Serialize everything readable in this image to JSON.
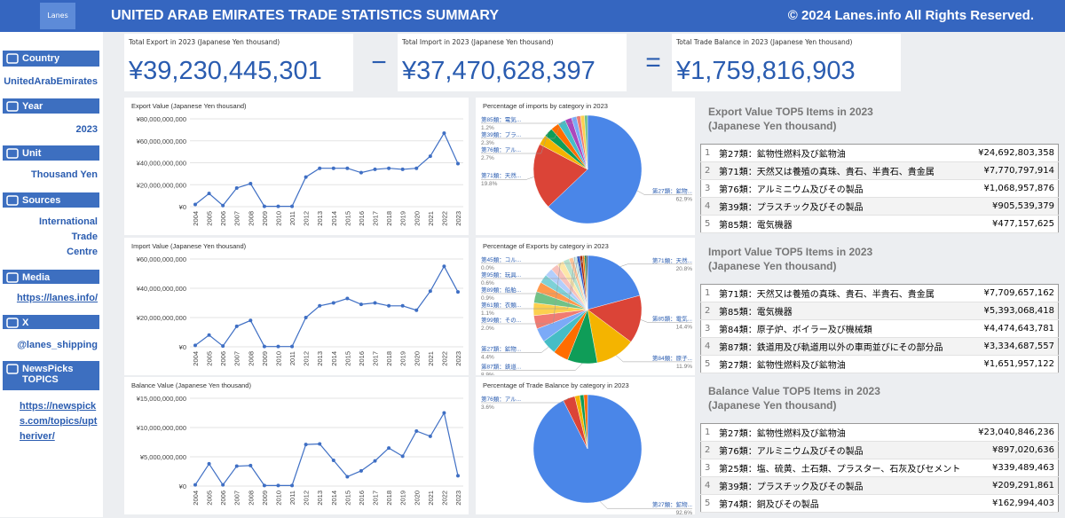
{
  "header": {
    "logo": "Lanes",
    "title": "UNITED ARAB EMIRATES TRADE STATISTICS SUMMARY",
    "copyright": "© 2024 Lanes.info All Rights Reserved."
  },
  "sidebar": [
    {
      "label": "Country",
      "value": "UnitedArabEmirates"
    },
    {
      "label": "Year",
      "value": "2023"
    },
    {
      "label": "Unit",
      "value": "Thousand Yen"
    },
    {
      "label": "Sources",
      "value": "International Trade Centre"
    },
    {
      "label": "Media",
      "value": "https://lanes.info/"
    },
    {
      "label": "X",
      "value": "@lanes_shipping"
    },
    {
      "label": "NewsPicks TOPICS",
      "value": "https://newspicks.com/topics/uptheriver/"
    }
  ],
  "kpis": [
    {
      "label": "Total Export in 2023 (Japanese Yen thousand)",
      "value": "¥39,230,445,301"
    },
    {
      "label": "Total Import in 2023 (Japanese Yen thousand)",
      "value": "¥37,470,628,397"
    },
    {
      "label": "Total Trade Balance in 2023 (Japanese Yen thousand)",
      "value": "¥1,759,816,903"
    }
  ],
  "operators": [
    "−",
    "="
  ],
  "chart_data": [
    {
      "type": "line",
      "title": "Export Value (Japanese Yen thousand)",
      "categories": [
        "2004",
        "2005",
        "2006",
        "2007",
        "2008",
        "2009",
        "2010",
        "2011",
        "2012",
        "2013",
        "2014",
        "2015",
        "2016",
        "2017",
        "2018",
        "2019",
        "2020",
        "2021",
        "2022",
        "2023"
      ],
      "values": [
        2000000000,
        12000000000,
        1000000000,
        17000000000,
        21000000000,
        300000000,
        300000000,
        300000000,
        27000000000,
        35000000000,
        35000000000,
        35000000000,
        31000000000,
        34000000000,
        35000000000,
        34000000000,
        35000000000,
        46000000000,
        67000000000,
        39230445301
      ],
      "color": "#3f6fc4",
      "ylim": [
        0,
        80000000000
      ],
      "yticks": [
        {
          "value": 0,
          "label": "¥0"
        },
        {
          "value": 20000000000,
          "label": "¥20,000,000,000"
        },
        {
          "value": 40000000000,
          "label": "¥40,000,000,000"
        },
        {
          "value": 60000000000,
          "label": "¥60,000,000,000"
        },
        {
          "value": 80000000000,
          "label": "¥80,000,000,000"
        }
      ],
      "grid": true
    },
    {
      "type": "line",
      "title": "Import Value (Japanese Yen thousand)",
      "categories": [
        "2004",
        "2005",
        "2006",
        "2007",
        "2008",
        "2009",
        "2010",
        "2011",
        "2012",
        "2013",
        "2014",
        "2015",
        "2016",
        "2017",
        "2018",
        "2019",
        "2020",
        "2021",
        "2022",
        "2023"
      ],
      "values": [
        1000000000,
        8000000000,
        500000000,
        14000000000,
        18000000000,
        200000000,
        200000000,
        200000000,
        20000000000,
        28000000000,
        30000000000,
        33000000000,
        29000000000,
        30000000000,
        28000000000,
        28000000000,
        25000000000,
        38000000000,
        55000000000,
        37470628397
      ],
      "color": "#3f6fc4",
      "ylim": [
        0,
        60000000000
      ],
      "yticks": [
        {
          "value": 0,
          "label": "¥0"
        },
        {
          "value": 20000000000,
          "label": "¥20,000,000,000"
        },
        {
          "value": 40000000000,
          "label": "¥40,000,000,000"
        },
        {
          "value": 60000000000,
          "label": "¥60,000,000,000"
        }
      ],
      "grid": true
    },
    {
      "type": "line",
      "title": "Balance Value (Japanese Yen thousand)",
      "categories": [
        "2004",
        "2005",
        "2006",
        "2007",
        "2008",
        "2009",
        "2010",
        "2011",
        "2012",
        "2013",
        "2014",
        "2015",
        "2016",
        "2017",
        "2018",
        "2019",
        "2020",
        "2021",
        "2022",
        "2023"
      ],
      "values": [
        200000000,
        3800000000,
        200000000,
        3400000000,
        3500000000,
        100000000,
        100000000,
        100000000,
        7100000000,
        7200000000,
        4400000000,
        1600000000,
        2600000000,
        4300000000,
        6500000000,
        5100000000,
        9400000000,
        8500000000,
        12500000000,
        1759816903
      ],
      "color": "#3f6fc4",
      "ylim": [
        0,
        15000000000
      ],
      "yticks": [
        {
          "value": 0,
          "label": "¥0"
        },
        {
          "value": 5000000000,
          "label": "¥5,000,000,000"
        },
        {
          "value": 10000000000,
          "label": "¥10,000,000,000"
        },
        {
          "value": 15000000000,
          "label": "¥15,000,000,000"
        }
      ],
      "grid": true
    },
    {
      "type": "pie",
      "title": "Percentage of imports by category in 2023",
      "categories": [
        "第27類：鉱物...",
        "第71類：天然...",
        null,
        "第76類：アル...",
        null,
        "第39類：プラ...",
        null,
        null,
        "第85類：電気...",
        null,
        null
      ],
      "values": [
        62.9,
        19.8,
        3.0,
        2.7,
        2.5,
        2.3,
        2.0,
        1.5,
        1.2,
        1.2,
        0.9
      ],
      "value_labels": [
        "62.9%",
        "19.8%",
        null,
        "2.7%",
        null,
        "2.3%",
        null,
        null,
        "1.2%",
        null,
        null
      ],
      "colors": [
        "#4a86e8",
        "#db4437",
        "#f4b400",
        "#0f9d58",
        "#ff6d00",
        "#46bdc6",
        "#ab47bc",
        "#7baaf7",
        "#f07b72",
        "#fcd04f",
        "#71c287"
      ]
    },
    {
      "type": "pie",
      "title": "Percentage of Exports by category in 2023",
      "categories": [
        "第71類：天然...",
        "第85類：電気...",
        "第84類：原子...",
        "第87類：鉄道...",
        null,
        "第27類：鉱物...",
        null,
        null,
        null,
        null,
        null,
        null,
        null,
        null,
        "第99類：その...",
        null,
        null,
        "第61類：衣類...",
        "第89類：船舶...",
        null,
        "第95類：玩具...",
        null,
        null,
        "第45類：コル..."
      ],
      "values": [
        20.8,
        14.4,
        11.9,
        8.9,
        4.6,
        4.4,
        4.2,
        4.0,
        3.8,
        3.4,
        3.0,
        2.6,
        2.4,
        2.2,
        2.0,
        1.8,
        1.3,
        1.1,
        0.9,
        0.8,
        0.6,
        0.5,
        0.4,
        0.0
      ],
      "value_labels": [
        "20.8%",
        "14.4%",
        "11.9%",
        "8.9%",
        null,
        "4.4%",
        null,
        null,
        null,
        null,
        null,
        null,
        null,
        null,
        "2.0%",
        null,
        null,
        "1.1%",
        "0.9%",
        null,
        "0.6%",
        null,
        null,
        "0.0%"
      ],
      "colors": [
        "#4a86e8",
        "#db4437",
        "#f4b400",
        "#0f9d58",
        "#ff6d00",
        "#46bdc6",
        "#7baaf7",
        "#f07b72",
        "#fcd04f",
        "#71c287",
        "#ff994d",
        "#7ed1d7",
        "#b3cefb",
        "#f7c1bb",
        "#fde7a9",
        "#b7e1cd",
        "#ffc599",
        "#c5e8eb",
        "#2a56c6",
        "#a52714",
        "#ee8100",
        "#0b8043",
        "#000000",
        "#9e9e9e"
      ]
    },
    {
      "type": "pie",
      "title": "Percentage of Trade Balance by category in 2023",
      "categories": [
        "第27類：鉱物...",
        "第76類：アル...",
        null,
        null,
        null
      ],
      "values": [
        92.6,
        3.6,
        1.5,
        1.2,
        1.1
      ],
      "value_labels": [
        "92.6%",
        "3.6%",
        null,
        null,
        null
      ],
      "colors": [
        "#4a86e8",
        "#db4437",
        "#f4b400",
        "#0f9d58",
        "#ff6d00"
      ]
    }
  ],
  "tables": [
    {
      "title": "Export Value TOP5 Items in 2023",
      "subtitle": "(Japanese Yen thousand)",
      "rows": [
        [
          1,
          "第27類：鉱物性燃料及び鉱物油",
          "¥24,692,803,358"
        ],
        [
          2,
          "第71類：天然又は養殖の真珠、貴石、半貴石、貴金属",
          "¥7,770,797,914"
        ],
        [
          3,
          "第76類：アルミニウム及びその製品",
          "¥1,068,957,876"
        ],
        [
          4,
          "第39類：プラスチック及びその製品",
          "¥905,539,379"
        ],
        [
          5,
          "第85類：電気機器",
          "¥477,157,625"
        ]
      ]
    },
    {
      "title": "Import Value TOP5 Items in 2023",
      "subtitle": "(Japanese Yen thousand)",
      "rows": [
        [
          1,
          "第71類：天然又は養殖の真珠、貴石、半貴石、貴金属",
          "¥7,709,657,162"
        ],
        [
          2,
          "第85類：電気機器",
          "¥5,393,068,418"
        ],
        [
          3,
          "第84類：原子炉、ボイラー及び機械類",
          "¥4,474,643,781"
        ],
        [
          4,
          "第87類：鉄道用及び軌道用以外の車両並びにその部分品",
          "¥3,334,687,557"
        ],
        [
          5,
          "第27類：鉱物性燃料及び鉱物油",
          "¥1,651,957,122"
        ]
      ]
    },
    {
      "title": "Balance Value TOP5 Items in 2023",
      "subtitle": "(Japanese Yen thousand)",
      "rows": [
        [
          1,
          "第27類：鉱物性燃料及び鉱物油",
          "¥23,040,846,236"
        ],
        [
          2,
          "第76類：アルミニウム及びその製品",
          "¥897,020,636"
        ],
        [
          3,
          "第25類：塩、硫黄、土石類、プラスター、石灰及びセメント",
          "¥339,489,463"
        ],
        [
          4,
          "第39類：プラスチック及びその製品",
          "¥209,291,861"
        ],
        [
          5,
          "第74類：銅及びその製品",
          "¥162,994,403"
        ]
      ]
    }
  ]
}
